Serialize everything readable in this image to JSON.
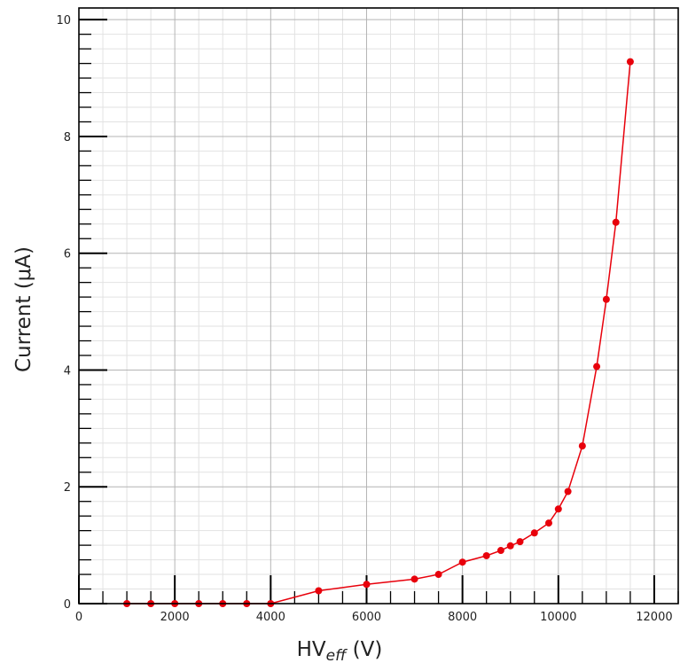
{
  "chart_data": {
    "type": "line",
    "title": "",
    "xlabel": "HV",
    "xlabel_subscript": "eff",
    "xlabel_unit": " (V)",
    "ylabel": "Current (μA)",
    "xlim": [
      0,
      12500
    ],
    "ylim": [
      0,
      10.2
    ],
    "x_ticks": [
      0,
      2000,
      4000,
      6000,
      8000,
      10000,
      12000
    ],
    "x_tick_labels": [
      "0",
      "2000",
      "4000",
      "6000",
      "8000",
      "10000",
      "12000"
    ],
    "y_ticks": [
      0,
      2,
      4,
      6,
      8,
      10
    ],
    "y_tick_labels": [
      "0",
      "2",
      "4",
      "6",
      "8",
      "10"
    ],
    "grid": true,
    "series": [
      {
        "color": "#e8000b",
        "marker": "circle",
        "x": [
          1000,
          1500,
          2000,
          2500,
          3000,
          3500,
          4000,
          5000,
          6000,
          7000,
          7500,
          8000,
          8500,
          8800,
          9000,
          9200,
          9500,
          9800,
          10000,
          10200,
          10500,
          10800,
          11000,
          11200,
          11500
        ],
        "y": [
          0,
          0,
          0,
          0,
          0,
          0,
          0,
          0.22,
          0.33,
          0.42,
          0.5,
          0.71,
          0.82,
          0.91,
          0.99,
          1.06,
          1.21,
          1.38,
          1.62,
          1.92,
          2.7,
          4.06,
          5.21,
          6.53,
          9.28
        ]
      }
    ]
  }
}
